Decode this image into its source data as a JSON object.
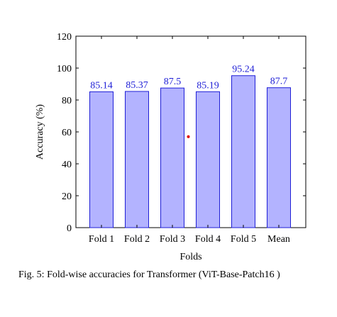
{
  "chart_data": {
    "type": "bar",
    "categories": [
      "Fold 1",
      "Fold 2",
      "Fold 3",
      "Fold 4",
      "Fold 5",
      "Mean"
    ],
    "values": [
      85.14,
      85.37,
      87.5,
      85.19,
      95.24,
      87.7
    ],
    "data_labels": [
      "85.14",
      "85.37",
      "87.5",
      "85.19",
      "95.24",
      "87.7"
    ],
    "xlabel": "Folds",
    "ylabel": "Accuracy (%)",
    "ylim": [
      0,
      120
    ],
    "yticks": [
      0,
      20,
      40,
      60,
      80,
      100,
      120
    ],
    "grid": false,
    "legend": "none",
    "colors": {
      "bar_fill": "#b3b3ff",
      "bar_stroke": "#1f1fd6",
      "data_label": "#1f1fd6",
      "marker": "#e00000"
    },
    "annotations": [
      {
        "type": "point",
        "x": 2.45,
        "y": 57
      }
    ]
  },
  "caption": "Fig. 5: Fold-wise accuracies for Transformer (ViT-Base-Patch16 )"
}
